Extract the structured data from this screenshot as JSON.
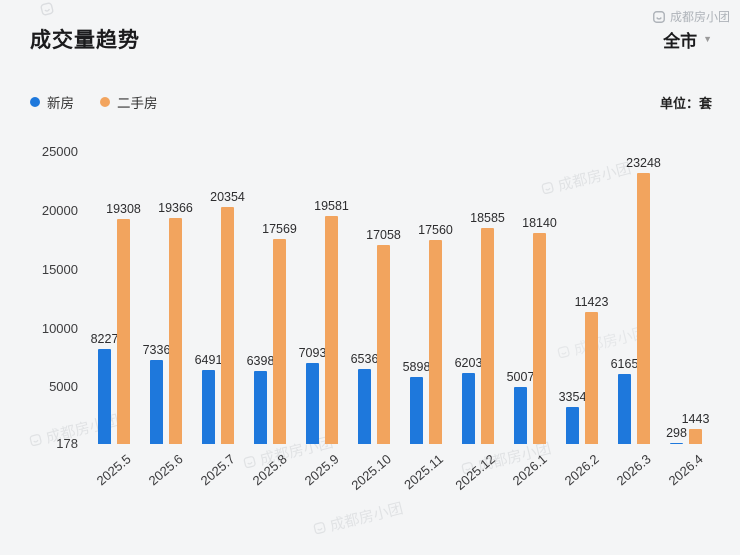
{
  "header": {
    "title": "成交量趋势",
    "city_filter": "全市",
    "unit_label": "单位：套"
  },
  "watermark": {
    "text": "成都房小团"
  },
  "chart_data": {
    "type": "bar",
    "title": "成交量趋势",
    "categories": [
      "2025.5",
      "2025.6",
      "2025.7",
      "2025.8",
      "2025.9",
      "2025.10",
      "2025.11",
      "2025.12",
      "2026.1",
      "2026.2",
      "2026.3",
      "2026.4"
    ],
    "series": [
      {
        "name": "新房",
        "color": "#1e78dc",
        "values": [
          8227,
          7336,
          6491,
          6398,
          7093,
          6536,
          5898,
          6203,
          5007,
          3354,
          6165,
          298
        ]
      },
      {
        "name": "二手房",
        "color": "#f2a45e",
        "values": [
          19308,
          19366,
          20354,
          17569,
          19581,
          17058,
          17560,
          18585,
          18140,
          11423,
          23248,
          1443
        ]
      }
    ],
    "ylim": [
      178,
      25000
    ],
    "yticks": [
      178,
      5000,
      10000,
      15000,
      20000,
      25000
    ],
    "unit": "套",
    "legend_position": "top-left",
    "grid": false,
    "value_labels": true
  }
}
